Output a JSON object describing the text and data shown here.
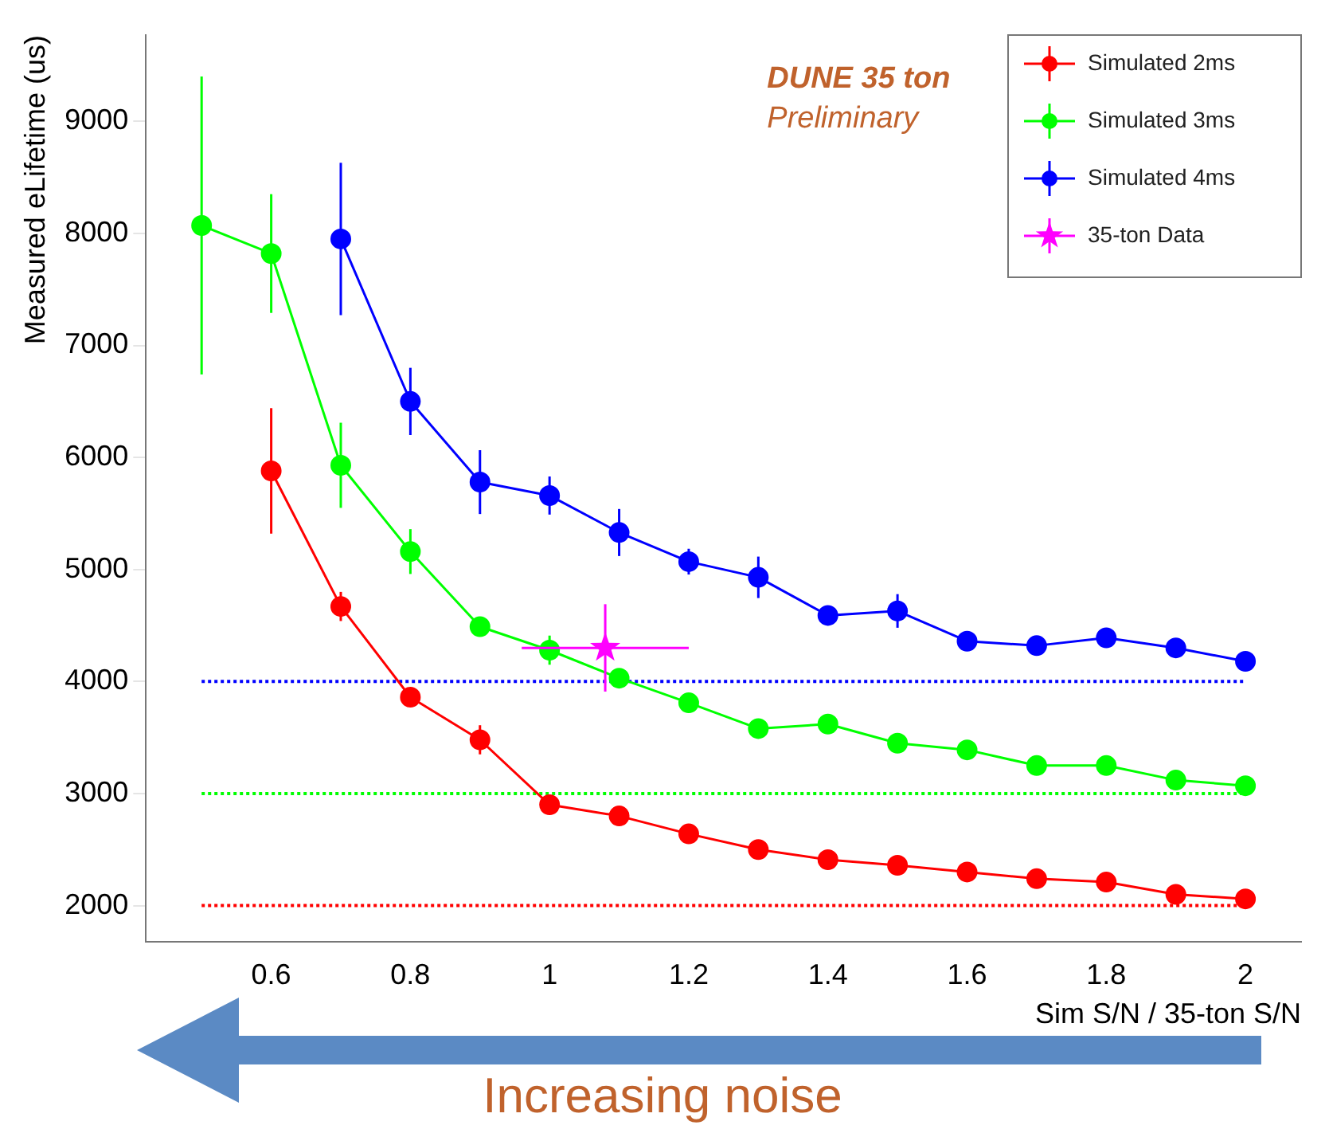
{
  "chart_data": {
    "type": "line",
    "xlabel": "Sim S/N / 35-ton S/N",
    "ylabel": "Measured eLifetime (us)",
    "xlim": [
      0.42,
      2.08
    ],
    "xticks": [
      0.6,
      0.8,
      1,
      1.2,
      1.4,
      1.6,
      1.8,
      2
    ],
    "ylim": [
      1680,
      9770
    ],
    "yticks": [
      2000,
      3000,
      4000,
      5000,
      6000,
      7000,
      8000,
      9000
    ],
    "grid": false,
    "legend": "top right",
    "marker": "circle",
    "line_style": "solid",
    "annotations": [
      "DUNE 35 ton",
      "Preliminary",
      "Increasing noise"
    ],
    "ref_lines": [
      {
        "axis": "y",
        "value": 4000,
        "label": null,
        "color": "#0000ff",
        "line_style": "dotted"
      },
      {
        "axis": "y",
        "value": 3000,
        "label": null,
        "color": "#00ff00",
        "line_style": "dotted"
      },
      {
        "axis": "y",
        "value": 2000,
        "label": null,
        "color": "#ff0000",
        "line_style": "dotted"
      }
    ],
    "series": [
      {
        "name": "Simulated 2ms",
        "type": "line",
        "color": "#ff0000",
        "x": [
          0.6,
          0.7,
          0.8,
          0.9,
          1.0,
          1.1,
          1.2,
          1.3,
          1.4,
          1.5,
          1.6,
          1.7,
          1.8,
          1.9,
          2.0
        ],
        "values": [
          5880,
          4670,
          3860,
          3480,
          2900,
          2800,
          2640,
          2500,
          2410,
          2360,
          2300,
          2240,
          2210,
          2100,
          2060
        ],
        "errors": [
          560,
          130,
          80,
          130,
          null,
          null,
          null,
          null,
          null,
          null,
          null,
          null,
          null,
          null,
          null
        ]
      },
      {
        "name": "Simulated 3ms",
        "type": "line",
        "color": "#00ff00",
        "x": [
          0.5,
          0.6,
          0.7,
          0.8,
          0.9,
          1.0,
          1.1,
          1.2,
          1.3,
          1.4,
          1.5,
          1.6,
          1.7,
          1.8,
          1.9,
          2.0
        ],
        "values": [
          8070,
          7820,
          5930,
          5160,
          4490,
          4280,
          4030,
          3810,
          3580,
          3620,
          3450,
          3390,
          3250,
          3250,
          3120,
          3070
        ],
        "errors": [
          1330,
          530,
          380,
          200,
          null,
          130,
          null,
          null,
          null,
          null,
          null,
          null,
          null,
          null,
          null,
          null
        ]
      },
      {
        "name": "Simulated 4ms",
        "type": "line",
        "color": "#0000ff",
        "x": [
          0.7,
          0.8,
          0.9,
          1.0,
          1.1,
          1.2,
          1.3,
          1.4,
          1.5,
          1.6,
          1.7,
          1.8,
          1.9,
          2.0
        ],
        "values": [
          7950,
          6500,
          5780,
          5660,
          5330,
          5070,
          4930,
          4590,
          4630,
          4360,
          4320,
          4390,
          4300,
          4180
        ],
        "errors": [
          680,
          300,
          285,
          170,
          210,
          115,
          185,
          null,
          150,
          null,
          null,
          null,
          null,
          null
        ]
      },
      {
        "name": "35-ton Data",
        "type": "scatter",
        "marker": "star",
        "color": "#ff00ff",
        "x": [
          1.08
        ],
        "values": [
          4300
        ],
        "errors": [
          390
        ],
        "xerrors": [
          0.12
        ]
      }
    ]
  }
}
